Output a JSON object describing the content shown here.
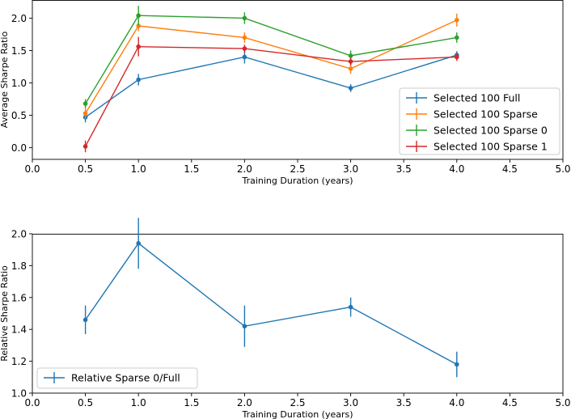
{
  "chart_data": [
    {
      "type": "line",
      "xlabel": "Training Duration (years)",
      "ylabel": "Average Sharpe Ratio",
      "xlim": [
        0.0,
        5.0
      ],
      "ylim": [
        -0.18,
        2.28
      ],
      "xticks": [
        "0.0",
        "0.5",
        "1.0",
        "1.5",
        "2.0",
        "2.5",
        "3.0",
        "3.5",
        "4.0",
        "4.5",
        "5.0"
      ],
      "yticks": [
        "0.0",
        "0.5",
        "1.0",
        "1.5",
        "2.0"
      ],
      "legend_position": "lower-right",
      "x": [
        0.5,
        1.0,
        2.0,
        3.0,
        4.0
      ],
      "series": [
        {
          "name": "Selected 100 Full",
          "color": "#1f77b4",
          "values": [
            0.47,
            1.05,
            1.4,
            0.92,
            1.43
          ],
          "errors": [
            0.08,
            0.09,
            0.1,
            0.06,
            0.06
          ]
        },
        {
          "name": "Selected 100 Sparse",
          "color": "#ff7f0e",
          "values": [
            0.53,
            1.88,
            1.7,
            1.22,
            1.97
          ],
          "errors": [
            0.08,
            0.08,
            0.08,
            0.08,
            0.1
          ]
        },
        {
          "name": "Selected 100 Sparse 0",
          "color": "#2ca02c",
          "values": [
            0.68,
            2.04,
            2.0,
            1.42,
            1.7
          ],
          "errors": [
            0.07,
            0.15,
            0.09,
            0.08,
            0.08
          ]
        },
        {
          "name": "Selected 100 Sparse 1",
          "color": "#d62728",
          "values": [
            0.02,
            1.56,
            1.53,
            1.33,
            1.4
          ],
          "errors": [
            0.09,
            0.15,
            0.06,
            0.06,
            0.06
          ]
        }
      ]
    },
    {
      "type": "line",
      "xlabel": "Training Duration (years)",
      "ylabel": "Relative Sharpe Ratio",
      "xlim": [
        0.0,
        5.0
      ],
      "ylim": [
        1.0,
        2.0
      ],
      "xticks": [
        "0.0",
        "0.5",
        "1.0",
        "1.5",
        "2.0",
        "2.5",
        "3.0",
        "3.5",
        "4.0",
        "4.5",
        "5.0"
      ],
      "yticks": [
        "1.0",
        "1.2",
        "1.4",
        "1.6",
        "1.8",
        "2.0"
      ],
      "legend_position": "lower-left",
      "x": [
        0.5,
        1.0,
        2.0,
        3.0,
        4.0
      ],
      "series": [
        {
          "name": "Relative Sparse 0/Full",
          "color": "#1f77b4",
          "values": [
            1.46,
            1.94,
            1.42,
            1.54,
            1.18
          ],
          "errors": [
            0.09,
            0.16,
            0.13,
            0.06,
            0.08
          ]
        }
      ]
    }
  ]
}
